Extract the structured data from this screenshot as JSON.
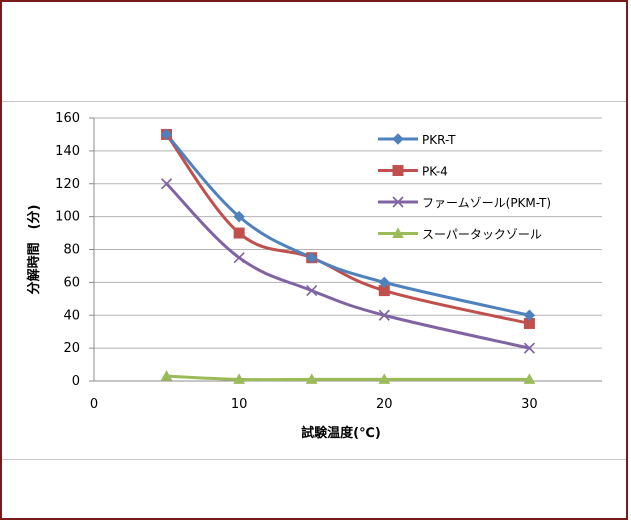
{
  "chart_data": {
    "type": "line",
    "title": "",
    "xlabel": "試験温度(℃)",
    "ylabel": "分解時間　(分)",
    "x_ticks": [
      0,
      10,
      20,
      30
    ],
    "y_ticks": [
      0,
      20,
      40,
      60,
      80,
      100,
      120,
      140,
      160
    ],
    "xlim": [
      0,
      35
    ],
    "ylim": [
      0,
      160
    ],
    "grid": "horizontal",
    "legend_position": "top-right",
    "series": [
      {
        "name": "PKR-T",
        "color": "#4f81bd",
        "marker": "diamond",
        "x": [
          5,
          10,
          15,
          20,
          30
        ],
        "values": [
          150,
          100,
          75,
          60,
          40
        ]
      },
      {
        "name": "PK-4",
        "color": "#c0504d",
        "marker": "square",
        "x": [
          5,
          10,
          15,
          20,
          30
        ],
        "values": [
          150,
          90,
          75,
          55,
          35
        ]
      },
      {
        "name": "ファームゾール(PKM-T)",
        "color": "#8064a2",
        "marker": "x",
        "x": [
          5,
          10,
          15,
          20,
          30
        ],
        "values": [
          120,
          75,
          55,
          40,
          20
        ]
      },
      {
        "name": "スーパータックゾール",
        "color": "#9bbb59",
        "marker": "triangle",
        "x": [
          5,
          10,
          15,
          20,
          30
        ],
        "values": [
          3,
          1,
          1,
          1,
          1
        ]
      }
    ]
  }
}
